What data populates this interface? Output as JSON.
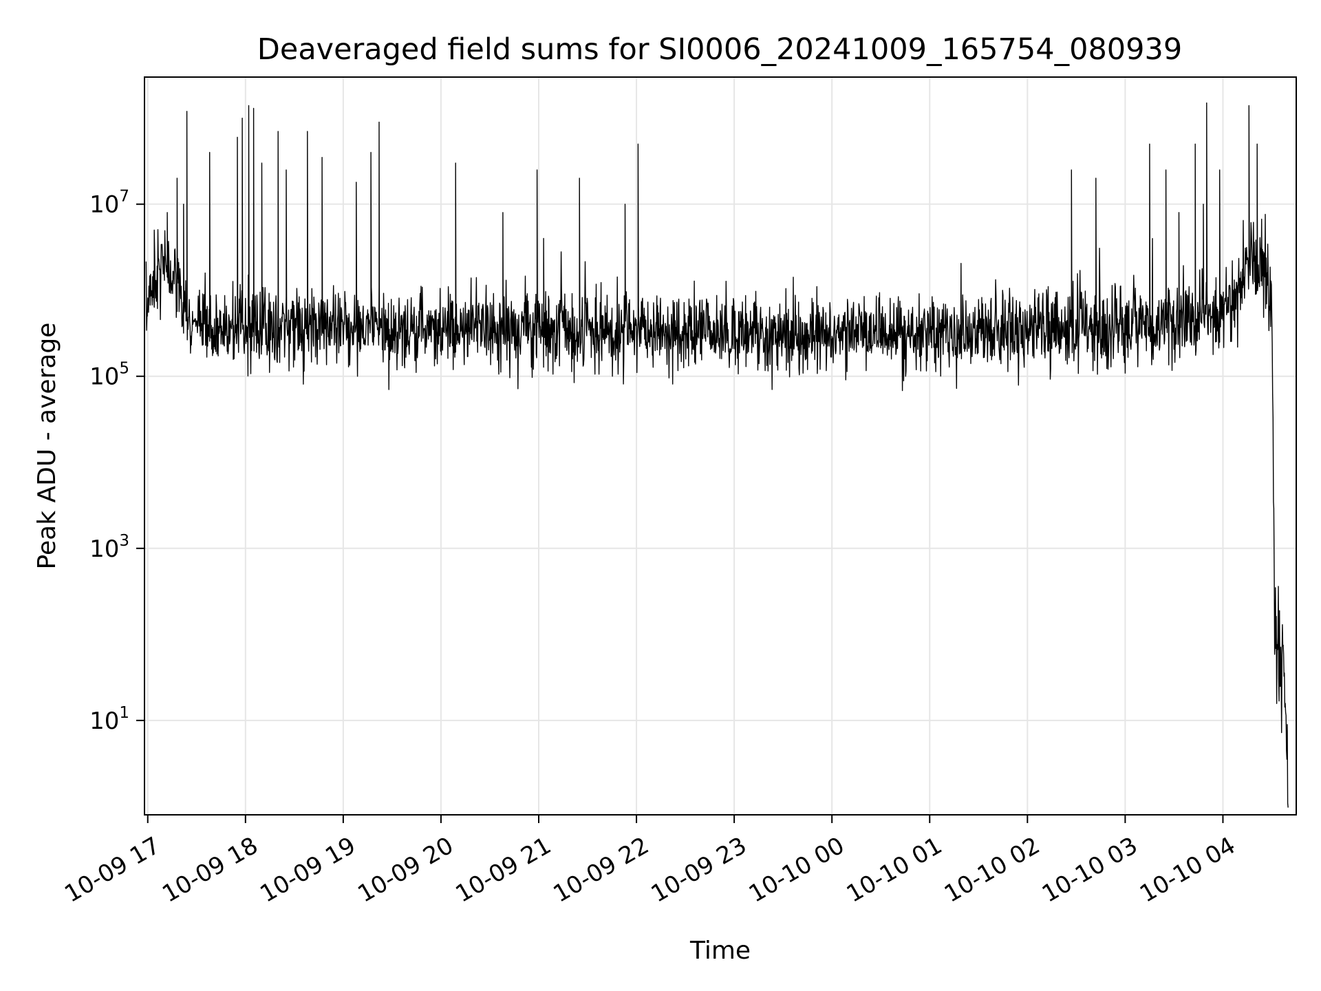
{
  "chart_data": {
    "type": "line",
    "title": "Deaveraged field sums for SI0006_20241009_165754_080939",
    "xlabel": "Time",
    "ylabel": "Peak ADU - average",
    "y_scale": "log",
    "ylim": [
      0.8,
      300000000
    ],
    "xlim": [
      "2024-10-09 16:58",
      "2024-10-10 04:45"
    ],
    "grid": true,
    "line_color": "#000000",
    "x_ticks": [
      "10-09 17",
      "10-09 18",
      "10-09 19",
      "10-09 20",
      "10-09 21",
      "10-09 22",
      "10-09 23",
      "10-10 00",
      "10-10 01",
      "10-10 02",
      "10-10 03",
      "10-10 04"
    ],
    "y_ticks": [
      {
        "base": "10",
        "exp": "1",
        "value": 10
      },
      {
        "base": "10",
        "exp": "3",
        "value": 1000
      },
      {
        "base": "10",
        "exp": "5",
        "value": 100000
      },
      {
        "base": "10",
        "exp": "7",
        "value": 10000000
      }
    ],
    "series": [
      {
        "x": [
          "2024-10-09 16:59",
          "2024-10-09 17:00",
          "2024-10-09 17:05",
          "2024-10-09 17:10",
          "2024-10-09 17:15",
          "2024-10-09 17:20",
          "2024-10-09 17:25",
          "2024-10-09 17:30",
          "2024-10-09 17:40",
          "2024-10-09 18:00",
          "2024-10-09 18:30",
          "2024-10-09 19:00",
          "2024-10-09 19:30",
          "2024-10-09 20:00",
          "2024-10-09 20:30",
          "2024-10-09 21:00",
          "2024-10-09 21:30",
          "2024-10-09 22:00",
          "2024-10-09 22:30",
          "2024-10-09 23:00",
          "2024-10-09 23:30",
          "2024-10-10 00:00",
          "2024-10-10 00:30",
          "2024-10-10 01:00",
          "2024-10-10 01:30",
          "2024-10-10 02:00",
          "2024-10-10 02:30",
          "2024-10-10 03:00",
          "2024-10-10 03:30",
          "2024-10-10 04:00",
          "2024-10-10 04:15",
          "2024-10-10 04:25",
          "2024-10-10 04:30",
          "2024-10-10 04:32",
          "2024-10-10 04:34",
          "2024-10-10 04:36",
          "2024-10-10 04:38",
          "2024-10-10 04:40"
        ],
        "y": [
          300000,
          800000,
          1500000,
          2000000,
          1500000,
          800000,
          400000,
          350000,
          350000,
          350000,
          400000,
          350000,
          350000,
          350000,
          350000,
          330000,
          330000,
          330000,
          330000,
          320000,
          320000,
          320000,
          320000,
          330000,
          330000,
          350000,
          350000,
          380000,
          400000,
          500000,
          2000000,
          1500000,
          800000,
          100,
          80,
          60,
          30,
          2
        ]
      }
    ],
    "spikes": [
      {
        "x": "2024-10-09 17:04",
        "y": 5000000
      },
      {
        "x": "2024-10-09 17:12",
        "y": 8000000
      },
      {
        "x": "2024-10-09 17:18",
        "y": 20000000
      },
      {
        "x": "2024-10-09 17:22",
        "y": 10000000
      },
      {
        "x": "2024-10-09 17:24",
        "y": 120000000
      },
      {
        "x": "2024-10-09 17:38",
        "y": 40000000
      },
      {
        "x": "2024-10-09 17:55",
        "y": 60000000
      },
      {
        "x": "2024-10-09 17:58",
        "y": 100000000
      },
      {
        "x": "2024-10-09 18:02",
        "y": 140000000
      },
      {
        "x": "2024-10-09 18:05",
        "y": 130000000
      },
      {
        "x": "2024-10-09 18:10",
        "y": 30000000
      },
      {
        "x": "2024-10-09 18:20",
        "y": 70000000
      },
      {
        "x": "2024-10-09 18:25",
        "y": 25000000
      },
      {
        "x": "2024-10-09 18:38",
        "y": 70000000
      },
      {
        "x": "2024-10-09 18:47",
        "y": 35000000
      },
      {
        "x": "2024-10-09 19:08",
        "y": 18000000
      },
      {
        "x": "2024-10-09 19:17",
        "y": 40000000
      },
      {
        "x": "2024-10-09 19:22",
        "y": 90000000
      },
      {
        "x": "2024-10-09 20:09",
        "y": 30000000
      },
      {
        "x": "2024-10-09 20:38",
        "y": 8000000
      },
      {
        "x": "2024-10-09 20:59",
        "y": 25000000
      },
      {
        "x": "2024-10-09 21:03",
        "y": 4000000
      },
      {
        "x": "2024-10-09 21:25",
        "y": 20000000
      },
      {
        "x": "2024-10-09 21:53",
        "y": 10000000
      },
      {
        "x": "2024-10-09 22:01",
        "y": 50000000
      },
      {
        "x": "2024-10-10 02:27",
        "y": 25000000
      },
      {
        "x": "2024-10-10 02:42",
        "y": 20000000
      },
      {
        "x": "2024-10-10 03:15",
        "y": 50000000
      },
      {
        "x": "2024-10-10 03:25",
        "y": 25000000
      },
      {
        "x": "2024-10-10 03:33",
        "y": 8000000
      },
      {
        "x": "2024-10-10 03:43",
        "y": 50000000
      },
      {
        "x": "2024-10-10 03:48",
        "y": 10000000
      },
      {
        "x": "2024-10-10 03:50",
        "y": 150000000
      },
      {
        "x": "2024-10-10 03:58",
        "y": 25000000
      },
      {
        "x": "2024-10-10 04:16",
        "y": 140000000
      },
      {
        "x": "2024-10-10 04:21",
        "y": 50000000
      }
    ]
  }
}
